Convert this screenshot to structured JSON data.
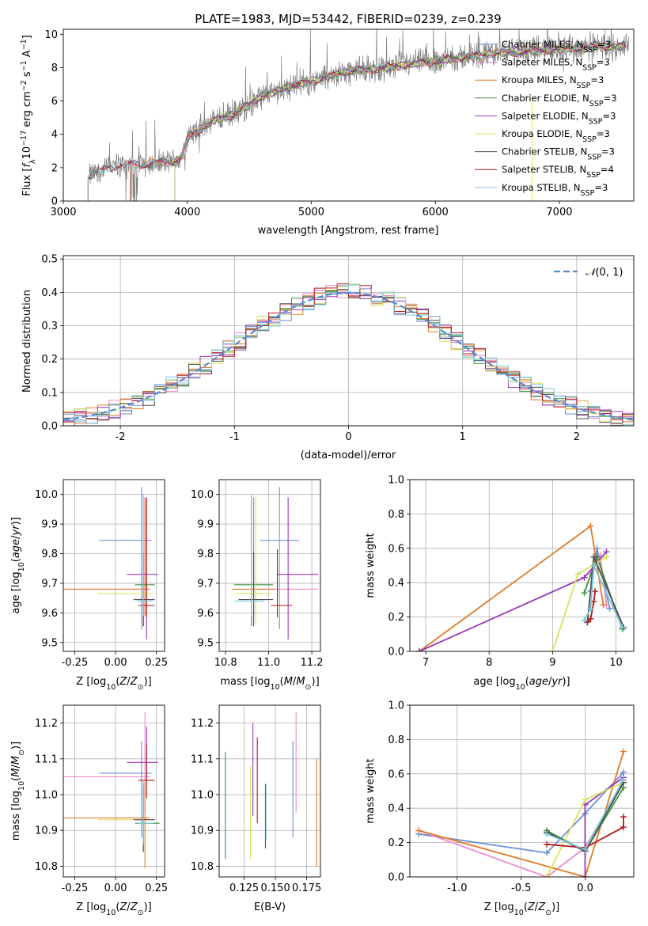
{
  "figure": {
    "title": "PLATE=1983, MJD=53442, FIBERID=0239, z=0.239"
  },
  "chart_data": [
    {
      "id": "spectrum",
      "type": "line",
      "title": "PLATE=1983, MJD=53442, FIBERID=0239, z=0.239",
      "xlabel": "wavelength [Angstrom, rest frame]",
      "ylabel": "Flux [f_λ 10^-17 erg cm^-2 s^-1 A^-1]",
      "xlim": [
        3000,
        7600
      ],
      "ylim": [
        0,
        10.3
      ],
      "xticks": [
        3000,
        4000,
        5000,
        6000,
        7000
      ],
      "yticks": [
        0,
        2,
        4,
        6,
        8,
        10
      ],
      "grid": false,
      "legend_position": "top-right",
      "data_trend": {
        "x": [
          3200,
          3400,
          3600,
          3800,
          3950,
          4000,
          4200,
          4400,
          4600,
          4800,
          5000,
          5300,
          5600,
          5800,
          6000,
          6300,
          6600,
          7000,
          7300
        ],
        "y": [
          1.5,
          2.1,
          2.2,
          2.3,
          2.5,
          3.8,
          4.8,
          5.3,
          6.3,
          6.8,
          7.2,
          7.8,
          8.0,
          8.2,
          8.4,
          8.7,
          8.9,
          9.1,
          9.3
        ]
      },
      "models": [
        {
          "name": "Chabrier MILES, N_SSP=3",
          "color": "#6b8fd6",
          "x_start": 3540
        },
        {
          "name": "Salpeter MILES, N_SSP=3",
          "color": "#ea8cc8",
          "x_start": 3540
        },
        {
          "name": "Kroupa MILES, N_SSP=3",
          "color": "#e07a26",
          "x_start": 3540
        },
        {
          "name": "Chabrier ELODIE, N_SSP=3",
          "color": "#3e8f3e",
          "x_start": 3900
        },
        {
          "name": "Salpeter ELODIE, N_SSP=3",
          "color": "#9b36b7",
          "x_start": 3900
        },
        {
          "name": "Kroupa ELODIE, N_SSP=3",
          "color": "#d7e35a",
          "x_start": 3900
        },
        {
          "name": "Chabrier STELIB, N_SSP=3",
          "color": "#4d4d4d",
          "x_start": 3200
        },
        {
          "name": "Salpeter STELIB, N_SSP=4",
          "color": "#b21a1a",
          "x_start": 3200
        },
        {
          "name": "Kroupa STELIB, N_SSP=3",
          "color": "#7ec9db",
          "x_start": 3200
        }
      ]
    },
    {
      "id": "residuals",
      "type": "histogram",
      "xlabel": "(data-model)/error",
      "ylabel": "Normed distribution",
      "xlim": [
        -2.5,
        2.5
      ],
      "ylim": [
        0,
        0.51
      ],
      "xticks": [
        -2,
        -1,
        0,
        1,
        2
      ],
      "yticks": [
        0.0,
        0.1,
        0.2,
        0.3,
        0.4,
        0.5
      ],
      "grid": true,
      "legend_position": "top-right",
      "reference_curve": {
        "name": "N(0,1)",
        "color": "#5b8bd4"
      }
    },
    {
      "id": "age-vs-Z",
      "type": "errorbar",
      "xlabel": "Z [log10(Z/Z☉)]",
      "ylabel": "age [log10(age/yr)]",
      "xlim": [
        -0.32,
        0.3
      ],
      "ylim": [
        9.47,
        10.05
      ],
      "xticks": [
        -0.25,
        0.0,
        0.25
      ],
      "yticks": [
        9.5,
        9.6,
        9.7,
        9.8,
        9.9,
        10.0
      ],
      "grid": true,
      "points": [
        {
          "color": "#6b8fd6",
          "x": 0.16,
          "y": 9.845,
          "xerr": [
            0.26,
            0.06
          ],
          "yerr": [
            0.3,
            0.18
          ]
        },
        {
          "color": "#ea8cc8",
          "x": 0.18,
          "y": 9.68,
          "xerr": [
            0.5,
            0.03
          ],
          "yerr": [
            0.09,
            0.31
          ]
        },
        {
          "color": "#e07a26",
          "x": 0.18,
          "y": 9.68,
          "xerr": [
            0.5,
            0.03
          ],
          "yerr": [
            0.09,
            0.31
          ]
        },
        {
          "color": "#3e8f3e",
          "x": 0.17,
          "y": 9.695,
          "xerr": [
            0.05,
            0.07
          ],
          "yerr": [
            0.14,
            0.11
          ]
        },
        {
          "color": "#9b36b7",
          "x": 0.19,
          "y": 9.73,
          "xerr": [
            0.12,
            0.07
          ],
          "yerr": [
            0.22,
            0.26
          ]
        },
        {
          "color": "#d7e35a",
          "x": 0.17,
          "y": 9.665,
          "xerr": [
            0.28,
            0.06
          ],
          "yerr": [
            0.1,
            0.33
          ]
        },
        {
          "color": "#4d4d4d",
          "x": 0.17,
          "y": 9.645,
          "xerr": [
            0.06,
            0.07
          ],
          "yerr": [
            0.09,
            0.16
          ]
        },
        {
          "color": "#b21a1a",
          "x": 0.19,
          "y": 9.625,
          "xerr": [
            0.05,
            0.05
          ],
          "yerr": [
            0.04,
            0.36
          ]
        },
        {
          "color": "#7ec9db",
          "x": 0.17,
          "y": 9.64,
          "xerr": [
            0.04,
            0.06
          ],
          "yerr": [
            0.05,
            0.36
          ]
        }
      ]
    },
    {
      "id": "age-vs-mass",
      "type": "errorbar",
      "xlabel": "mass [log10(M/M☉)]",
      "ylabel": "",
      "xlim": [
        10.77,
        11.24
      ],
      "ylim": [
        9.47,
        10.05
      ],
      "xticks": [
        10.8,
        11.0,
        11.2
      ],
      "yticks": [
        9.5,
        9.6,
        9.7,
        9.8,
        9.9,
        10.0
      ],
      "grid": true,
      "points": [
        {
          "color": "#6b8fd6",
          "x": 11.05,
          "y": 9.845,
          "xerr": [
            0.09,
            0.09
          ],
          "yerr": [
            0.3,
            0.18
          ]
        },
        {
          "color": "#ea8cc8",
          "x": 11.05,
          "y": 9.68,
          "xerr": [
            0.1,
            0.18
          ],
          "yerr": [
            0.09,
            0.31
          ]
        },
        {
          "color": "#e07a26",
          "x": 10.93,
          "y": 9.68,
          "xerr": [
            0.1,
            0.1
          ],
          "yerr": [
            0.09,
            0.31
          ]
        },
        {
          "color": "#3e8f3e",
          "x": 10.92,
          "y": 9.695,
          "xerr": [
            0.08,
            0.1
          ],
          "yerr": [
            0.14,
            0.3
          ]
        },
        {
          "color": "#9b36b7",
          "x": 11.09,
          "y": 9.73,
          "xerr": [
            0.05,
            0.14
          ],
          "yerr": [
            0.22,
            0.26
          ]
        },
        {
          "color": "#d7e35a",
          "x": 10.94,
          "y": 9.665,
          "xerr": [
            0.09,
            0.07
          ],
          "yerr": [
            0.1,
            0.33
          ]
        },
        {
          "color": "#4d4d4d",
          "x": 10.93,
          "y": 9.645,
          "xerr": [
            0.07,
            0.09
          ],
          "yerr": [
            0.09,
            0.16
          ]
        },
        {
          "color": "#b21a1a",
          "x": 11.04,
          "y": 9.625,
          "xerr": [
            0.03,
            0.07
          ],
          "yerr": [
            0.04,
            0.19
          ]
        },
        {
          "color": "#7ec9db",
          "x": 10.92,
          "y": 9.64,
          "xerr": [
            0.08,
            0.06
          ],
          "yerr": [
            0.05,
            0.36
          ]
        }
      ]
    },
    {
      "id": "mass-weight-vs-age",
      "type": "line",
      "xlabel": "age [log10(age/yr)]",
      "ylabel": "mass weight",
      "xlim": [
        6.75,
        10.28
      ],
      "ylim": [
        0,
        1.0
      ],
      "xticks": [
        7,
        8,
        9,
        10
      ],
      "yticks": [
        0.0,
        0.2,
        0.4,
        0.6,
        0.8,
        1.0
      ],
      "grid": true,
      "series": [
        {
          "color": "#6b8fd6",
          "x": [
            9.6,
            9.7,
            9.9
          ],
          "y": [
            0.35,
            0.6,
            0.25
          ]
        },
        {
          "color": "#ea8cc8",
          "x": [
            9.6,
            9.75,
            9.85
          ],
          "y": [
            0.45,
            0.56,
            0.27
          ]
        },
        {
          "color": "#e07a26",
          "x": [
            6.9,
            9.6,
            9.8
          ],
          "y": [
            0.0,
            0.73,
            0.27
          ]
        },
        {
          "color": "#3e8f3e",
          "x": [
            9.5,
            9.7,
            10.1
          ],
          "y": [
            0.34,
            0.55,
            0.13
          ]
        },
        {
          "color": "#9b36b7",
          "x": [
            6.9,
            9.5,
            9.85
          ],
          "y": [
            0.0,
            0.43,
            0.58
          ]
        },
        {
          "color": "#d7e35a",
          "x": [
            9.0,
            9.4,
            9.85
          ],
          "y": [
            0.0,
            0.45,
            0.55
          ]
        },
        {
          "color": "#4d4d4d",
          "x": [
            9.55,
            9.65,
            10.12
          ],
          "y": [
            0.17,
            0.55,
            0.14
          ]
        },
        {
          "color": "#b21a1a",
          "x": [
            9.55,
            9.6,
            9.65,
            9.67
          ],
          "y": [
            0.17,
            0.19,
            0.29,
            0.35
          ]
        },
        {
          "color": "#7ec9db",
          "x": [
            9.5,
            9.6,
            9.65,
            10.1
          ],
          "y": [
            0.18,
            0.25,
            0.5,
            0.14
          ]
        }
      ]
    },
    {
      "id": "mass-vs-Z",
      "type": "errorbar",
      "xlabel": "Z [log10(Z/Z☉)]",
      "ylabel": "mass [log10(M/M☉)]",
      "xlim": [
        -0.32,
        0.3
      ],
      "ylim": [
        10.77,
        11.25
      ],
      "xticks": [
        -0.25,
        0.0,
        0.25
      ],
      "yticks": [
        10.8,
        10.9,
        11.0,
        11.1,
        11.2
      ],
      "grid": true,
      "points": [
        {
          "color": "#6b8fd6",
          "x": 0.16,
          "y": 11.06,
          "xerr": [
            0.26,
            0.06
          ],
          "yerr": [
            0.18,
            0.09
          ]
        },
        {
          "color": "#ea8cc8",
          "x": 0.18,
          "y": 11.05,
          "xerr": [
            0.5,
            0.03
          ],
          "yerr": [
            0.1,
            0.18
          ]
        },
        {
          "color": "#e07a26",
          "x": 0.18,
          "y": 10.935,
          "xerr": [
            0.5,
            0.03
          ],
          "yerr": [
            0.14,
            0.1
          ]
        },
        {
          "color": "#3e8f3e",
          "x": 0.17,
          "y": 10.92,
          "xerr": [
            0.05,
            0.1
          ],
          "yerr": [
            0.08,
            0.1
          ]
        },
        {
          "color": "#9b36b7",
          "x": 0.19,
          "y": 11.09,
          "xerr": [
            0.12,
            0.07
          ],
          "yerr": [
            0.05,
            0.1
          ]
        },
        {
          "color": "#d7e35a",
          "x": 0.17,
          "y": 10.93,
          "xerr": [
            0.28,
            0.06
          ],
          "yerr": [
            0.09,
            0.08
          ]
        },
        {
          "color": "#4d4d4d",
          "x": 0.17,
          "y": 10.93,
          "xerr": [
            0.06,
            0.07
          ],
          "yerr": [
            0.09,
            0.1
          ]
        },
        {
          "color": "#b21a1a",
          "x": 0.19,
          "y": 11.04,
          "xerr": [
            0.05,
            0.05
          ],
          "yerr": [
            0.05,
            0.1
          ]
        },
        {
          "color": "#7ec9db",
          "x": 0.17,
          "y": 10.92,
          "xerr": [
            0.04,
            0.06
          ],
          "yerr": [
            0.06,
            0.12
          ]
        }
      ]
    },
    {
      "id": "mass-vs-ebv",
      "type": "errorbar",
      "xlabel": "E(B-V)",
      "ylabel": "",
      "xlim": [
        0.105,
        0.186
      ],
      "ylim": [
        10.77,
        11.25
      ],
      "xticks": [
        0.125,
        0.15,
        0.175
      ],
      "yticks": [
        10.8,
        10.9,
        11.0,
        11.1,
        11.2
      ],
      "grid": true,
      "points": [
        {
          "color": "#3e8f3e",
          "x": 0.11,
          "y": 10.97,
          "yerr": [
            0.15,
            0.15
          ]
        },
        {
          "color": "#d7e35a",
          "x": 0.13,
          "y": 10.95,
          "yerr": [
            0.13,
            0.13
          ]
        },
        {
          "color": "#9b36b7",
          "x": 0.132,
          "y": 11.07,
          "yerr": [
            0.13,
            0.13
          ]
        },
        {
          "color": "#b21a1a",
          "x": 0.1355,
          "y": 11.04,
          "yerr": [
            0.12,
            0.12
          ]
        },
        {
          "color": "#4d4d4d",
          "x": 0.142,
          "y": 10.94,
          "yerr": [
            0.09,
            0.09
          ]
        },
        {
          "color": "#7ec9db",
          "x": 0.1425,
          "y": 10.95,
          "yerr": [
            0.08,
            0.08
          ]
        },
        {
          "color": "#6b8fd6",
          "x": 0.164,
          "y": 11.01,
          "yerr": [
            0.13,
            0.14
          ]
        },
        {
          "color": "#ea8cc8",
          "x": 0.1665,
          "y": 11.09,
          "yerr": [
            0.14,
            0.14
          ]
        },
        {
          "color": "#e07a26",
          "x": 0.183,
          "y": 10.95,
          "yerr": [
            0.15,
            0.15
          ]
        }
      ]
    },
    {
      "id": "mass-weight-vs-Z",
      "type": "line",
      "xlabel": "Z [log10(Z/Z☉)]",
      "ylabel": "mass weight",
      "xlim": [
        -1.37,
        0.38
      ],
      "ylim": [
        0,
        1.0
      ],
      "xticks": [
        -1.0,
        -0.5,
        0.0
      ],
      "yticks": [
        0.0,
        0.2,
        0.4,
        0.6,
        0.8,
        1.0
      ],
      "grid": true,
      "series": [
        {
          "color": "#6b8fd6",
          "x": [
            -1.3,
            -0.3,
            0.0,
            0.3
          ],
          "y": [
            0.25,
            0.14,
            0.37,
            0.61
          ]
        },
        {
          "color": "#ea8cc8",
          "x": [
            -1.3,
            -0.3,
            0.0,
            0.3
          ],
          "y": [
            0.27,
            0.0,
            0.17,
            0.56
          ]
        },
        {
          "color": "#e07a26",
          "x": [
            -1.3,
            0.0,
            0.3
          ],
          "y": [
            0.27,
            0.0,
            0.73
          ]
        },
        {
          "color": "#3e8f3e",
          "x": [
            -0.3,
            0.0,
            0.3
          ],
          "y": [
            0.27,
            0.15,
            0.52
          ]
        },
        {
          "color": "#9b36b7",
          "x": [
            0.0,
            0.0,
            0.3
          ],
          "y": [
            0.0,
            0.42,
            0.58
          ]
        },
        {
          "color": "#d7e35a",
          "x": [
            -0.3,
            0.0,
            0.3
          ],
          "y": [
            0.0,
            0.45,
            0.55
          ]
        },
        {
          "color": "#4d4d4d",
          "x": [
            -0.3,
            0.0,
            0.3
          ],
          "y": [
            0.26,
            0.15,
            0.55
          ]
        },
        {
          "color": "#b21a1a",
          "x": [
            -0.3,
            0.0,
            0.3,
            0.3
          ],
          "y": [
            0.19,
            0.17,
            0.29,
            0.35
          ]
        },
        {
          "color": "#7ec9db",
          "x": [
            -0.3,
            0.0,
            0.3
          ],
          "y": [
            0.25,
            0.16,
            0.57
          ]
        }
      ]
    }
  ]
}
